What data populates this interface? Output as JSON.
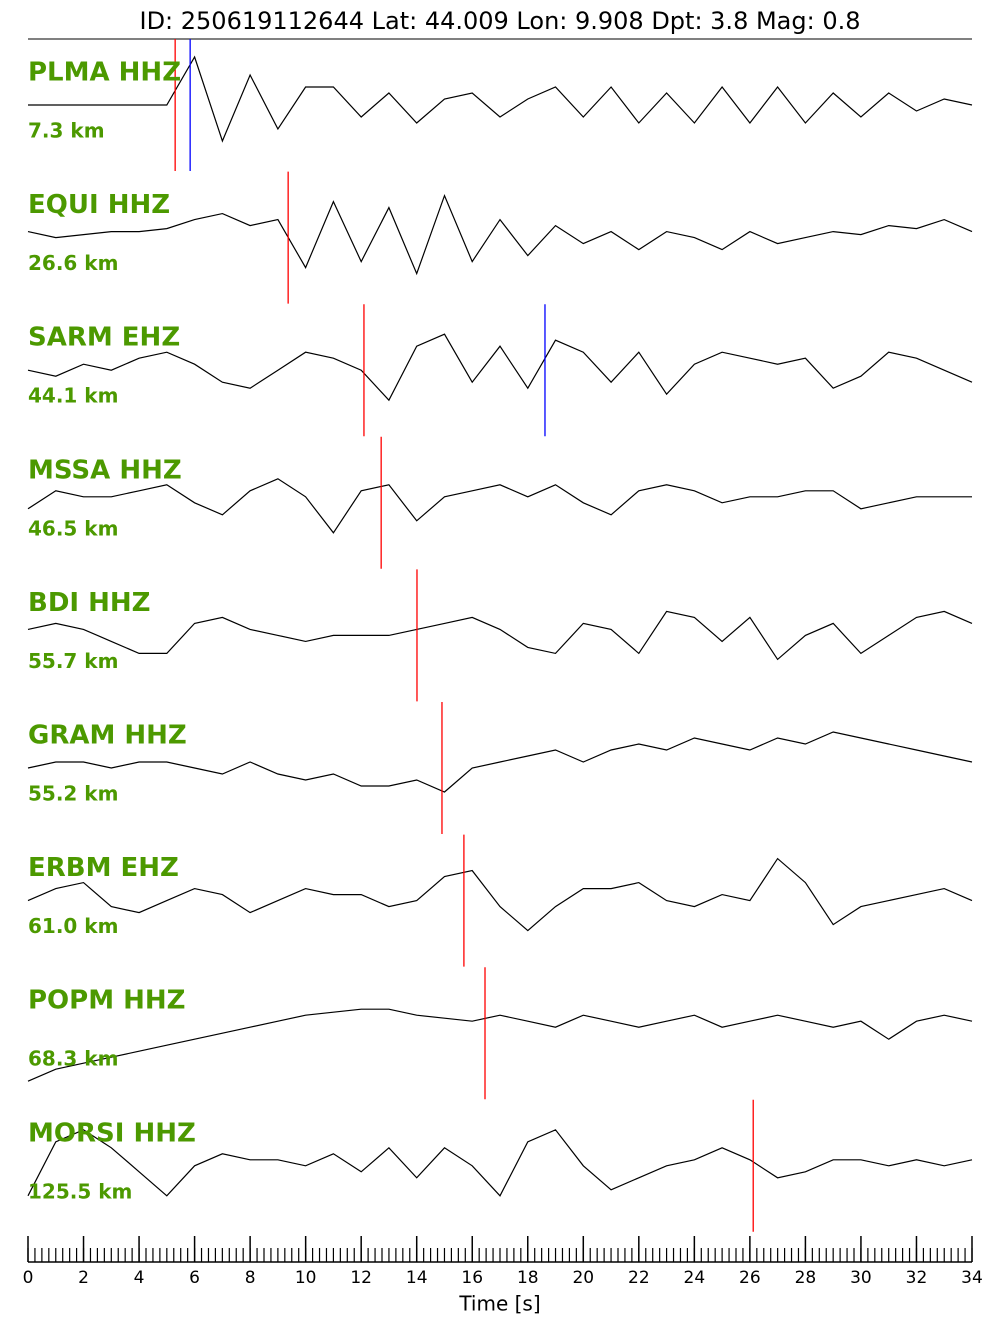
{
  "chart_data": {
    "type": "seismogram",
    "title": "ID: 250619112644 Lat:  44.009 Lon:   9.908 Dpt:     3.8 Mag:   0.8",
    "xlabel": "Time [s]",
    "xlim": [
      0,
      34
    ],
    "xticks": [
      0,
      2,
      4,
      6,
      8,
      10,
      12,
      14,
      16,
      18,
      20,
      22,
      24,
      26,
      28,
      30,
      32,
      34
    ],
    "minor_tick_step": 0.25,
    "label_color": "#4c9900",
    "x": [
      0,
      1,
      2,
      3,
      4,
      5,
      6,
      7,
      8,
      9,
      10,
      11,
      12,
      13,
      14,
      15,
      16,
      17,
      18,
      19,
      20,
      21,
      22,
      23,
      24,
      25,
      26,
      27,
      28,
      29,
      30,
      31,
      32,
      33,
      34
    ],
    "series": [
      {
        "name": "PLMA HHZ",
        "distance": "7.3 km",
        "color": "#000000",
        "values": [
          0,
          0,
          0,
          0,
          0,
          0,
          0.8,
          -0.6,
          0.5,
          -0.4,
          0.3,
          0.3,
          -0.2,
          0.2,
          -0.3,
          0.1,
          0.2,
          -0.2,
          0.1,
          0.3,
          -0.2,
          0.3,
          -0.3,
          0.2,
          -0.3,
          0.3,
          -0.3,
          0.3,
          -0.3,
          0.2,
          -0.2,
          0.2,
          -0.1,
          0.1,
          0
        ],
        "picks": [
          {
            "time": 5.3,
            "color": "#ff0000"
          },
          {
            "time": 5.84,
            "color": "#0000ff"
          }
        ]
      },
      {
        "name": "EQUI HHZ",
        "distance": "26.6 km",
        "color": "#000000",
        "values": [
          0.1,
          0,
          0.05,
          0.1,
          0.1,
          0.15,
          0.3,
          0.4,
          0.2,
          0.3,
          -0.5,
          0.6,
          -0.4,
          0.5,
          -0.6,
          0.7,
          -0.4,
          0.3,
          -0.3,
          0.2,
          -0.1,
          0.1,
          -0.2,
          0.1,
          0,
          -0.2,
          0.1,
          -0.1,
          0,
          0.1,
          0.05,
          0.2,
          0.15,
          0.3,
          0.1
        ],
        "picks": [
          {
            "time": 9.37,
            "color": "#ff0000"
          }
        ]
      },
      {
        "name": "SARM EHZ",
        "distance": "44.1 km",
        "color": "#000000",
        "values": [
          0,
          -0.1,
          0.1,
          0,
          0.2,
          0.3,
          0.1,
          -0.2,
          -0.3,
          0,
          0.3,
          0.2,
          0,
          -0.5,
          0.4,
          0.6,
          -0.2,
          0.4,
          -0.3,
          0.5,
          0.3,
          -0.2,
          0.3,
          -0.4,
          0.1,
          0.3,
          0.2,
          0.1,
          0.2,
          -0.3,
          -0.1,
          0.3,
          0.2,
          0,
          -0.2
        ],
        "picks": [
          {
            "time": 12.1,
            "color": "#ff0000"
          },
          {
            "time": 18.62,
            "color": "#0000ff"
          }
        ]
      },
      {
        "name": "MSSA HHZ",
        "distance": "46.5 km",
        "color": "#000000",
        "values": [
          -0.1,
          0.2,
          0.1,
          0.1,
          0.2,
          0.3,
          0,
          -0.2,
          0.2,
          0.4,
          0.1,
          -0.5,
          0.2,
          0.3,
          -0.3,
          0.1,
          0.2,
          0.3,
          0.1,
          0.3,
          0,
          -0.2,
          0.2,
          0.3,
          0.2,
          0,
          0.1,
          0.1,
          0.2,
          0.2,
          -0.1,
          0,
          0.1,
          0.1,
          0.1
        ],
        "picks": [
          {
            "time": 12.72,
            "color": "#ff0000"
          }
        ]
      },
      {
        "name": "BDI HHZ",
        "distance": "55.7 km",
        "color": "#000000",
        "values": [
          0.1,
          0.2,
          0.1,
          -0.1,
          -0.3,
          -0.3,
          0.2,
          0.3,
          0.1,
          0,
          -0.1,
          0,
          0,
          0,
          0.1,
          0.2,
          0.3,
          0.1,
          -0.2,
          -0.3,
          0.2,
          0.1,
          -0.3,
          0.4,
          0.3,
          -0.1,
          0.3,
          -0.4,
          0,
          0.2,
          -0.3,
          0,
          0.3,
          0.4,
          0.2
        ],
        "picks": [
          {
            "time": 14.01,
            "color": "#ff0000"
          }
        ]
      },
      {
        "name": "GRAM HHZ",
        "distance": "55.2 km",
        "color": "#000000",
        "values": [
          0,
          0.1,
          0.1,
          0,
          0.1,
          0.1,
          0,
          -0.1,
          0.1,
          -0.1,
          -0.2,
          -0.1,
          -0.3,
          -0.3,
          -0.2,
          -0.4,
          0,
          0.1,
          0.2,
          0.3,
          0.1,
          0.3,
          0.4,
          0.3,
          0.5,
          0.4,
          0.3,
          0.5,
          0.4,
          0.6,
          0.5,
          0.4,
          0.3,
          0.2,
          0.1
        ],
        "picks": [
          {
            "time": 14.91,
            "color": "#ff0000"
          }
        ]
      },
      {
        "name": "ERBM EHZ",
        "distance": "61.0 km",
        "color": "#000000",
        "values": [
          0,
          0.2,
          0.3,
          -0.1,
          -0.2,
          0,
          0.2,
          0.1,
          -0.2,
          0,
          0.2,
          0.1,
          0.1,
          -0.1,
          0,
          0.4,
          0.5,
          -0.1,
          -0.5,
          -0.1,
          0.2,
          0.2,
          0.3,
          0,
          -0.1,
          0.1,
          0,
          0.7,
          0.3,
          -0.4,
          -0.1,
          0,
          0.1,
          0.2,
          0
        ],
        "picks": [
          {
            "time": 15.7,
            "color": "#ff0000"
          }
        ]
      },
      {
        "name": "POPM HHZ",
        "distance": "68.3 km",
        "color": "#000000",
        "values": [
          -0.8,
          -0.6,
          -0.5,
          -0.4,
          -0.3,
          -0.2,
          -0.1,
          0,
          0.1,
          0.2,
          0.3,
          0.35,
          0.4,
          0.4,
          0.3,
          0.25,
          0.2,
          0.3,
          0.2,
          0.1,
          0.3,
          0.2,
          0.1,
          0.2,
          0.3,
          0.1,
          0.2,
          0.3,
          0.2,
          0.1,
          0.2,
          -0.1,
          0.2,
          0.3,
          0.2
        ],
        "picks": [
          {
            "time": 16.46,
            "color": "#ff0000"
          }
        ]
      },
      {
        "name": "MORSI HHZ",
        "distance": "125.5 km",
        "color": "#000000",
        "values": [
          -0.5,
          0.4,
          0.6,
          0.3,
          -0.1,
          -0.5,
          0,
          0.2,
          0.1,
          0.1,
          0,
          0.2,
          -0.1,
          0.3,
          -0.2,
          0.3,
          0,
          -0.5,
          0.4,
          0.6,
          0,
          -0.4,
          -0.2,
          0,
          0.1,
          0.3,
          0.1,
          -0.2,
          -0.1,
          0.1,
          0.1,
          0,
          0.1,
          0,
          0.1
        ],
        "picks": [
          {
            "time": 26.12,
            "color": "#ff0000"
          }
        ]
      }
    ]
  }
}
